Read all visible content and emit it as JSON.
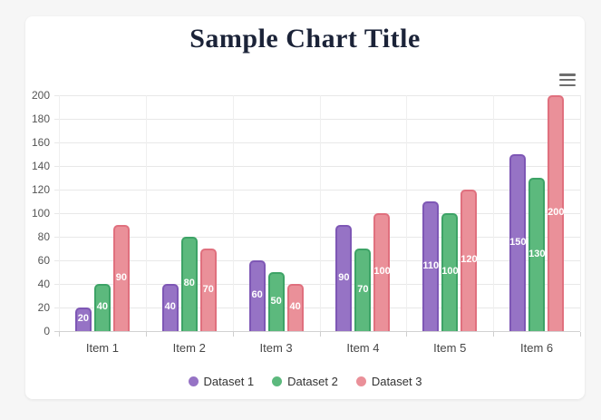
{
  "page": {
    "background_color": "#f6f6f6",
    "card_color": "#ffffff"
  },
  "menu": {
    "icon": "hamburger-icon"
  },
  "chart_data": {
    "type": "bar",
    "title": "Sample Chart Title",
    "title_color": "#1b2338",
    "categories": [
      "Item 1",
      "Item 2",
      "Item 3",
      "Item 4",
      "Item 5",
      "Item 6"
    ],
    "series": [
      {
        "name": "Dataset 1",
        "values": [
          20,
          40,
          60,
          90,
          110,
          150
        ],
        "fill": "#9673c5",
        "border": "#7e57b5"
      },
      {
        "name": "Dataset 2",
        "values": [
          40,
          80,
          50,
          70,
          100,
          130
        ],
        "fill": "#5cb97d",
        "border": "#3da366"
      },
      {
        "name": "Dataset 3",
        "values": [
          90,
          70,
          40,
          100,
          120,
          200
        ],
        "fill": "#ea9099",
        "border": "#e0707e"
      }
    ],
    "ylim": [
      0,
      200
    ],
    "ytick_step": 20,
    "grid": true,
    "value_labels": true,
    "value_label_color": "#ffffff",
    "legend_position": "bottom",
    "xlabel": "",
    "ylabel": ""
  }
}
